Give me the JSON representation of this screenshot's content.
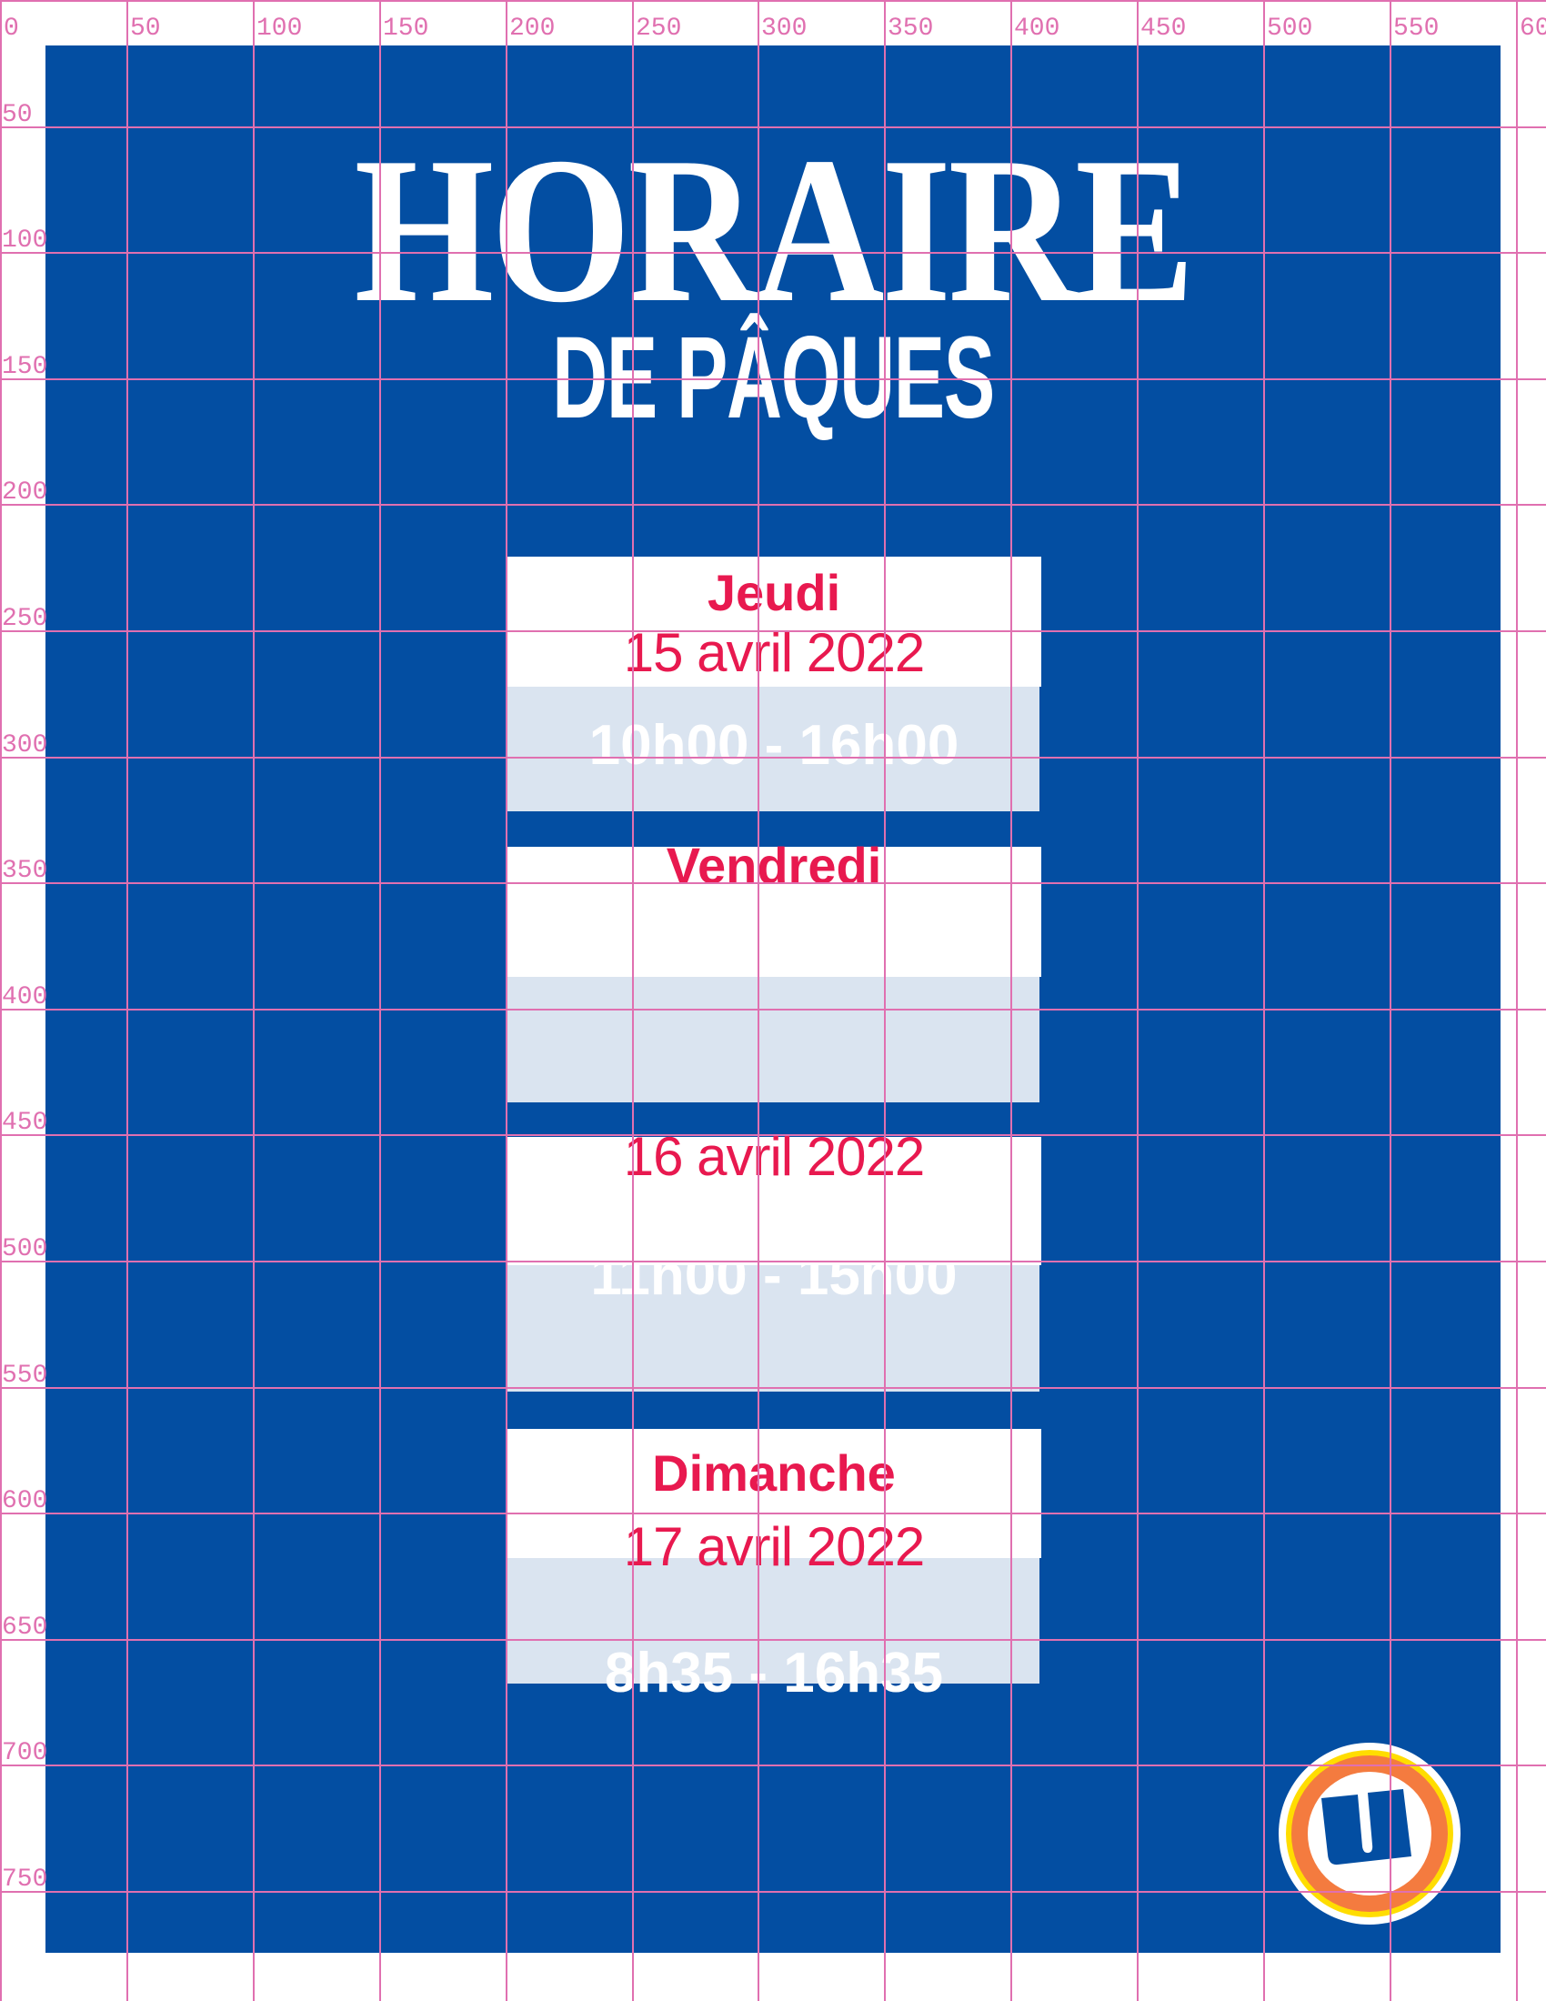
{
  "title": "HORAIRE",
  "subtitle": "DE PÂQUES",
  "colors": {
    "background": "#034ea2",
    "accent": "#e8194f",
    "time_panel": "#dae4f0",
    "grid": "#e070b0"
  },
  "days": [
    {
      "day": "Jeudi",
      "date": "15 avril 2022",
      "hours": "10h00 - 16h00"
    },
    {
      "day": "Vendredi",
      "date": "",
      "hours": ""
    },
    {
      "day": "",
      "date": "16 avril 2022",
      "hours": "11h00 - 15h00"
    },
    {
      "day": "Dimanche",
      "date": "17 avril 2022",
      "hours": "8h35 - 16h35"
    }
  ],
  "grid_labels": {
    "top": [
      "0",
      "50",
      "100",
      "150",
      "200",
      "250",
      "300",
      "350",
      "400",
      "450",
      "500",
      "550",
      "60"
    ],
    "left": [
      "50",
      "100",
      "150",
      "200",
      "250",
      "300",
      "350",
      "400",
      "450",
      "500",
      "550",
      "600",
      "650",
      "700",
      "750"
    ]
  },
  "logo": {
    "icon": "u-logo-icon"
  }
}
